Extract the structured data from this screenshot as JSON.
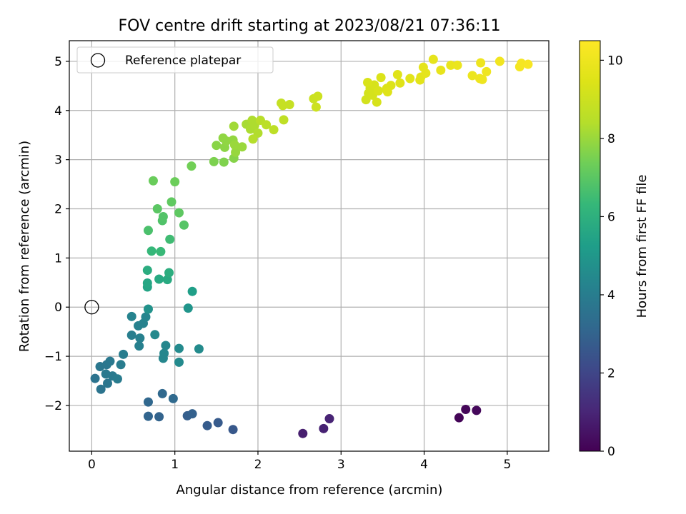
{
  "chart_data": {
    "type": "scatter",
    "title": "FOV centre drift starting at 2023/08/21 07:36:11",
    "xlabel": "Angular distance from reference (arcmin)",
    "ylabel": "Rotation from reference (arcmin)",
    "xlim": [
      -0.27,
      5.5
    ],
    "ylim": [
      -2.93,
      5.42
    ],
    "xticks": [
      0,
      1,
      2,
      3,
      4,
      5
    ],
    "yticks": [
      -2,
      -1,
      0,
      1,
      2,
      3,
      4,
      5
    ],
    "grid": true,
    "legend": {
      "location": "upper-left",
      "entries": [
        "Reference platepar"
      ]
    },
    "reference_point": {
      "x": 0,
      "y": 0,
      "marker": "open-circle"
    },
    "colorbar": {
      "label": "Hours from first FF file",
      "colormap": "viridis",
      "range": [
        0,
        10.5
      ],
      "ticks": [
        0,
        2,
        4,
        6,
        8,
        10
      ]
    },
    "series": [
      {
        "color_by": "hours",
        "points": [
          {
            "x": 4.42,
            "y": -2.25,
            "c": 0.1
          },
          {
            "x": 4.5,
            "y": -2.08,
            "c": 0.15
          },
          {
            "x": 4.63,
            "y": -2.1,
            "c": 0.2
          },
          {
            "x": 2.54,
            "y": -2.57,
            "c": 0.8
          },
          {
            "x": 2.79,
            "y": -2.47,
            "c": 0.9
          },
          {
            "x": 2.86,
            "y": -2.27,
            "c": 0.95
          },
          {
            "x": 1.7,
            "y": -2.49,
            "c": 2.6
          },
          {
            "x": 1.52,
            "y": -2.35,
            "c": 2.7
          },
          {
            "x": 1.39,
            "y": -2.41,
            "c": 2.75
          },
          {
            "x": 1.15,
            "y": -2.21,
            "c": 2.85
          },
          {
            "x": 1.21,
            "y": -2.17,
            "c": 2.9
          },
          {
            "x": 0.81,
            "y": -2.23,
            "c": 3.0
          },
          {
            "x": 0.68,
            "y": -2.22,
            "c": 3.05
          },
          {
            "x": 0.68,
            "y": -1.93,
            "c": 3.15
          },
          {
            "x": 0.85,
            "y": -1.76,
            "c": 3.2
          },
          {
            "x": 0.98,
            "y": -1.86,
            "c": 3.25
          },
          {
            "x": 0.04,
            "y": -1.45,
            "c": 3.6
          },
          {
            "x": 0.11,
            "y": -1.67,
            "c": 3.65
          },
          {
            "x": 0.19,
            "y": -1.55,
            "c": 3.7
          },
          {
            "x": 0.1,
            "y": -1.21,
            "c": 3.75
          },
          {
            "x": 0.18,
            "y": -1.17,
            "c": 3.75
          },
          {
            "x": 0.22,
            "y": -1.1,
            "c": 3.8
          },
          {
            "x": 0.17,
            "y": -1.36,
            "c": 3.85
          },
          {
            "x": 0.25,
            "y": -1.4,
            "c": 3.85
          },
          {
            "x": 0.31,
            "y": -1.46,
            "c": 3.9
          },
          {
            "x": 0.35,
            "y": -1.17,
            "c": 3.95
          },
          {
            "x": 0.38,
            "y": -0.96,
            "c": 4.0
          },
          {
            "x": 0.48,
            "y": -0.57,
            "c": 4.05
          },
          {
            "x": 0.57,
            "y": -0.79,
            "c": 4.1
          },
          {
            "x": 0.58,
            "y": -0.63,
            "c": 4.1
          },
          {
            "x": 0.56,
            "y": -0.38,
            "c": 4.15
          },
          {
            "x": 0.62,
            "y": -0.33,
            "c": 4.2
          },
          {
            "x": 0.48,
            "y": -0.19,
            "c": 4.25
          },
          {
            "x": 0.65,
            "y": -0.2,
            "c": 4.3
          },
          {
            "x": 0.87,
            "y": -0.94,
            "c": 4.35
          },
          {
            "x": 0.86,
            "y": -1.04,
            "c": 4.35
          },
          {
            "x": 0.89,
            "y": -0.78,
            "c": 4.4
          },
          {
            "x": 0.76,
            "y": -0.56,
            "c": 4.45
          },
          {
            "x": 1.05,
            "y": -1.12,
            "c": 4.5
          },
          {
            "x": 1.05,
            "y": -0.84,
            "c": 4.5
          },
          {
            "x": 1.29,
            "y": -0.85,
            "c": 4.55
          },
          {
            "x": 0.68,
            "y": -0.04,
            "c": 4.8
          },
          {
            "x": 1.16,
            "y": -0.02,
            "c": 4.9
          },
          {
            "x": 1.21,
            "y": 0.32,
            "c": 5.3
          },
          {
            "x": 0.67,
            "y": 0.41,
            "c": 5.5
          },
          {
            "x": 0.67,
            "y": 0.49,
            "c": 5.6
          },
          {
            "x": 0.81,
            "y": 0.57,
            "c": 5.7
          },
          {
            "x": 0.91,
            "y": 0.56,
            "c": 5.75
          },
          {
            "x": 0.67,
            "y": 0.75,
            "c": 5.85
          },
          {
            "x": 0.93,
            "y": 0.7,
            "c": 5.9
          },
          {
            "x": 0.72,
            "y": 1.14,
            "c": 6.3
          },
          {
            "x": 0.83,
            "y": 1.13,
            "c": 6.35
          },
          {
            "x": 0.94,
            "y": 1.38,
            "c": 6.5
          },
          {
            "x": 0.68,
            "y": 1.56,
            "c": 6.7
          },
          {
            "x": 0.85,
            "y": 1.76,
            "c": 6.8
          },
          {
            "x": 0.86,
            "y": 1.84,
            "c": 6.85
          },
          {
            "x": 1.11,
            "y": 1.67,
            "c": 6.9
          },
          {
            "x": 0.79,
            "y": 2.0,
            "c": 7.0
          },
          {
            "x": 1.05,
            "y": 1.92,
            "c": 7.05
          },
          {
            "x": 0.96,
            "y": 2.14,
            "c": 7.1
          },
          {
            "x": 0.74,
            "y": 2.57,
            "c": 7.25
          },
          {
            "x": 1.0,
            "y": 2.55,
            "c": 7.3
          },
          {
            "x": 1.2,
            "y": 2.87,
            "c": 7.4
          },
          {
            "x": 1.47,
            "y": 2.96,
            "c": 7.55
          },
          {
            "x": 1.59,
            "y": 2.95,
            "c": 7.6
          },
          {
            "x": 1.71,
            "y": 3.03,
            "c": 7.7
          },
          {
            "x": 1.5,
            "y": 3.29,
            "c": 7.75
          },
          {
            "x": 1.6,
            "y": 3.25,
            "c": 7.8
          },
          {
            "x": 1.62,
            "y": 3.38,
            "c": 7.85
          },
          {
            "x": 1.58,
            "y": 3.44,
            "c": 7.85
          },
          {
            "x": 1.7,
            "y": 3.4,
            "c": 7.9
          },
          {
            "x": 1.73,
            "y": 3.15,
            "c": 7.95
          },
          {
            "x": 1.81,
            "y": 3.26,
            "c": 8.0
          },
          {
            "x": 1.72,
            "y": 3.3,
            "c": 8.0
          },
          {
            "x": 1.71,
            "y": 3.68,
            "c": 8.1
          },
          {
            "x": 1.86,
            "y": 3.72,
            "c": 8.2
          },
          {
            "x": 1.91,
            "y": 3.62,
            "c": 8.25
          },
          {
            "x": 1.93,
            "y": 3.8,
            "c": 8.3
          },
          {
            "x": 1.96,
            "y": 3.7,
            "c": 8.3
          },
          {
            "x": 2.0,
            "y": 3.54,
            "c": 8.35
          },
          {
            "x": 1.94,
            "y": 3.42,
            "c": 8.4
          },
          {
            "x": 2.03,
            "y": 3.8,
            "c": 8.5
          },
          {
            "x": 2.1,
            "y": 3.71,
            "c": 8.55
          },
          {
            "x": 2.19,
            "y": 3.61,
            "c": 8.6
          },
          {
            "x": 2.31,
            "y": 3.81,
            "c": 8.65
          },
          {
            "x": 2.28,
            "y": 4.15,
            "c": 8.8
          },
          {
            "x": 2.38,
            "y": 4.12,
            "c": 8.85
          },
          {
            "x": 2.3,
            "y": 4.1,
            "c": 8.85
          },
          {
            "x": 2.67,
            "y": 4.24,
            "c": 8.95
          },
          {
            "x": 2.72,
            "y": 4.29,
            "c": 9.0
          },
          {
            "x": 2.7,
            "y": 4.07,
            "c": 9.0
          },
          {
            "x": 3.3,
            "y": 4.22,
            "c": 9.2
          },
          {
            "x": 3.33,
            "y": 4.35,
            "c": 9.2
          },
          {
            "x": 3.35,
            "y": 4.45,
            "c": 9.25
          },
          {
            "x": 3.38,
            "y": 4.31,
            "c": 9.25
          },
          {
            "x": 3.4,
            "y": 4.52,
            "c": 9.3
          },
          {
            "x": 3.43,
            "y": 4.17,
            "c": 9.3
          },
          {
            "x": 3.45,
            "y": 4.4,
            "c": 9.35
          },
          {
            "x": 3.32,
            "y": 4.57,
            "c": 9.35
          },
          {
            "x": 3.48,
            "y": 4.67,
            "c": 9.4
          },
          {
            "x": 3.55,
            "y": 4.45,
            "c": 9.45
          },
          {
            "x": 3.6,
            "y": 4.51,
            "c": 9.45
          },
          {
            "x": 3.56,
            "y": 4.38,
            "c": 9.5
          },
          {
            "x": 3.68,
            "y": 4.73,
            "c": 9.55
          },
          {
            "x": 3.71,
            "y": 4.56,
            "c": 9.55
          },
          {
            "x": 3.83,
            "y": 4.65,
            "c": 9.6
          },
          {
            "x": 3.95,
            "y": 4.62,
            "c": 9.65
          },
          {
            "x": 3.96,
            "y": 4.68,
            "c": 9.65
          },
          {
            "x": 3.99,
            "y": 4.88,
            "c": 9.7
          },
          {
            "x": 4.02,
            "y": 4.76,
            "c": 9.7
          },
          {
            "x": 4.11,
            "y": 5.04,
            "c": 9.75
          },
          {
            "x": 4.2,
            "y": 4.82,
            "c": 9.8
          },
          {
            "x": 4.32,
            "y": 4.92,
            "c": 9.85
          },
          {
            "x": 4.4,
            "y": 4.92,
            "c": 9.9
          },
          {
            "x": 4.58,
            "y": 4.71,
            "c": 9.95
          },
          {
            "x": 4.68,
            "y": 4.97,
            "c": 10.0
          },
          {
            "x": 4.7,
            "y": 4.63,
            "c": 10.0
          },
          {
            "x": 4.67,
            "y": 4.65,
            "c": 10.0
          },
          {
            "x": 4.75,
            "y": 4.79,
            "c": 10.05
          },
          {
            "x": 4.91,
            "y": 5.0,
            "c": 10.1
          },
          {
            "x": 5.15,
            "y": 4.89,
            "c": 10.2
          },
          {
            "x": 5.17,
            "y": 4.96,
            "c": 10.25
          },
          {
            "x": 5.25,
            "y": 4.94,
            "c": 10.3
          }
        ]
      }
    ]
  }
}
